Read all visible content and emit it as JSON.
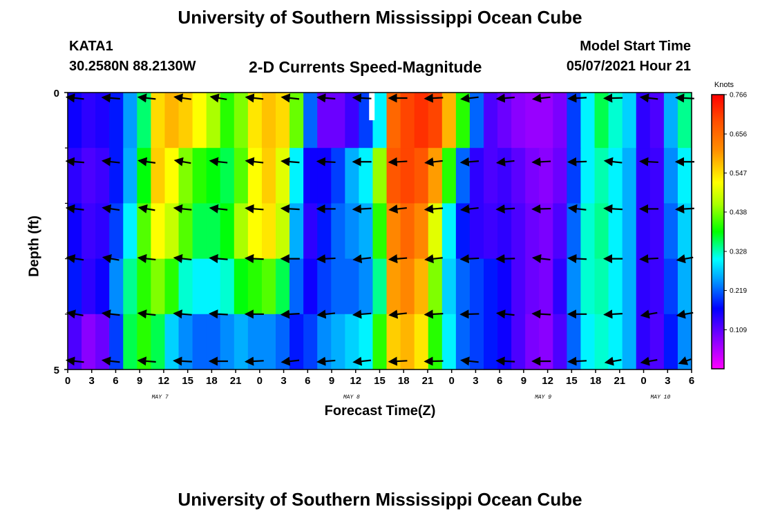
{
  "header": {
    "top_title": "University of Southern Mississippi Ocean Cube",
    "bottom_title": "University of Southern Mississippi Ocean Cube",
    "station_name": "KATA1",
    "station_coords": "30.2580N  88.2130W",
    "plot_title": "2-D Currents Speed-Magnitude",
    "model_label": "Model Start Time",
    "model_time": "05/07/2021 Hour 21"
  },
  "chart_data": {
    "type": "heatmap",
    "title": "2-D Currents Speed-Magnitude",
    "xlabel": "Forecast Time(Z)",
    "ylabel": "Depth (ft)",
    "x_ticks": [
      "0",
      "3",
      "6",
      "9",
      "12",
      "15",
      "18",
      "21",
      "0",
      "3",
      "6",
      "9",
      "12",
      "15",
      "18",
      "21",
      "0",
      "3",
      "6",
      "9",
      "12",
      "15",
      "18",
      "21",
      "0",
      "3",
      "6"
    ],
    "date_labels": [
      "MAY 7",
      "MAY 8",
      "MAY 9",
      "MAY 10"
    ],
    "y_ticks": [
      "0",
      "5"
    ],
    "ylim": [
      0,
      5
    ],
    "colorbar": {
      "unit": "Knots",
      "ticks": [
        "0.766",
        "0.656",
        "0.547",
        "0.438",
        "0.328",
        "0.219",
        "0.109"
      ],
      "range": [
        0,
        0.766
      ]
    },
    "depth_layers": 5,
    "columns_hourly": 81,
    "speed_knots": [
      [
        0.16,
        0.14,
        0.15,
        0.18,
        0.25,
        0.35,
        0.55,
        0.58,
        0.56,
        0.52,
        0.46,
        0.4,
        0.44,
        0.54,
        0.57,
        0.55,
        0.43,
        0.22,
        0.1,
        0.1,
        0.13,
        0.2,
        0.3,
        0.66,
        0.7,
        0.72,
        0.7,
        0.58,
        0.4,
        0.22,
        0.12,
        0.1,
        0.08,
        0.07,
        0.07,
        0.09,
        0.2,
        0.3,
        0.36,
        0.32,
        0.28,
        0.14,
        0.12,
        0.26,
        0.34
      ],
      [
        0.14,
        0.12,
        0.13,
        0.18,
        0.26,
        0.38,
        0.56,
        0.52,
        0.44,
        0.4,
        0.38,
        0.36,
        0.42,
        0.52,
        0.56,
        0.5,
        0.3,
        0.16,
        0.16,
        0.2,
        0.26,
        0.3,
        0.45,
        0.68,
        0.7,
        0.68,
        0.6,
        0.4,
        0.22,
        0.14,
        0.12,
        0.13,
        0.11,
        0.09,
        0.08,
        0.1,
        0.2,
        0.3,
        0.33,
        0.3,
        0.26,
        0.14,
        0.13,
        0.24,
        0.3
      ],
      [
        0.16,
        0.13,
        0.14,
        0.2,
        0.3,
        0.42,
        0.52,
        0.48,
        0.42,
        0.36,
        0.36,
        0.38,
        0.46,
        0.52,
        0.54,
        0.48,
        0.26,
        0.14,
        0.18,
        0.22,
        0.24,
        0.26,
        0.4,
        0.62,
        0.66,
        0.62,
        0.5,
        0.3,
        0.18,
        0.14,
        0.13,
        0.14,
        0.12,
        0.1,
        0.09,
        0.12,
        0.22,
        0.32,
        0.34,
        0.3,
        0.26,
        0.14,
        0.13,
        0.22,
        0.28
      ],
      [
        0.18,
        0.14,
        0.16,
        0.24,
        0.34,
        0.4,
        0.44,
        0.4,
        0.32,
        0.3,
        0.3,
        0.32,
        0.38,
        0.4,
        0.42,
        0.36,
        0.22,
        0.16,
        0.2,
        0.22,
        0.22,
        0.24,
        0.34,
        0.6,
        0.62,
        0.58,
        0.44,
        0.28,
        0.22,
        0.2,
        0.18,
        0.16,
        0.12,
        0.1,
        0.09,
        0.14,
        0.24,
        0.32,
        0.33,
        0.3,
        0.26,
        0.14,
        0.13,
        0.2,
        0.26
      ],
      [
        0.12,
        0.08,
        0.1,
        0.2,
        0.36,
        0.4,
        0.36,
        0.28,
        0.24,
        0.22,
        0.22,
        0.24,
        0.26,
        0.24,
        0.24,
        0.22,
        0.18,
        0.2,
        0.24,
        0.26,
        0.28,
        0.3,
        0.4,
        0.56,
        0.58,
        0.54,
        0.4,
        0.3,
        0.22,
        0.2,
        0.18,
        0.16,
        0.12,
        0.09,
        0.08,
        0.12,
        0.22,
        0.3,
        0.32,
        0.3,
        0.26,
        0.14,
        0.12,
        0.18,
        0.24
      ]
    ],
    "no_data_marker": {
      "x_hour": 39,
      "depth_range": [
        0,
        0.5
      ]
    }
  }
}
